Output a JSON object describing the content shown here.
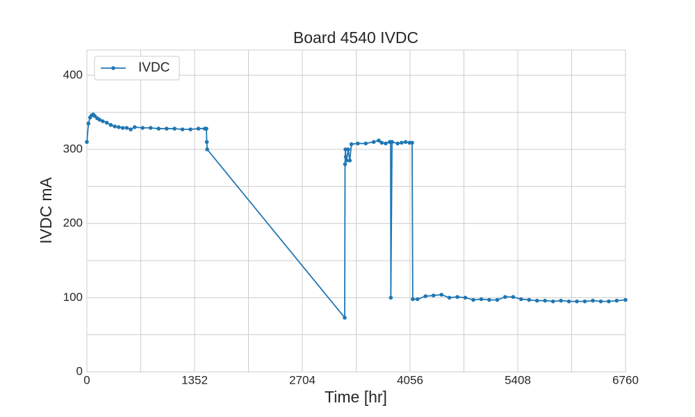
{
  "chart_data": {
    "type": "line",
    "title": "Board 4540 IVDC",
    "x_label": "Time [hr]",
    "y_label": "IVDC mA",
    "xlim": [
      0,
      6760
    ],
    "ylim": [
      0,
      434
    ],
    "xticks": [
      0,
      1352,
      2704,
      4056,
      5408,
      6760
    ],
    "yticks": [
      0,
      100,
      200,
      300,
      400
    ],
    "x_grid": [
      676,
      2028,
      3380,
      4732,
      6084
    ],
    "y_grid": [
      50,
      150,
      250,
      350
    ],
    "grid": true,
    "legend": "upper left",
    "series": [
      {
        "name": "IVDC",
        "color": "#1f77b4",
        "x": [
          0,
          20,
          40,
          60,
          80,
          100,
          130,
          160,
          200,
          250,
          300,
          350,
          400,
          450,
          500,
          550,
          600,
          700,
          800,
          900,
          1000,
          1100,
          1200,
          1300,
          1400,
          1480,
          1500,
          1505,
          1510,
          3236,
          3240,
          3245,
          3250,
          3260,
          3280,
          3300,
          3320,
          3400,
          3500,
          3600,
          3663,
          3700,
          3750,
          3800,
          3812,
          3815,
          3830,
          3900,
          3950,
          4000,
          4050,
          4082,
          4090,
          4150,
          4250,
          4350,
          4450,
          4550,
          4650,
          4750,
          4850,
          4950,
          5050,
          5150,
          5250,
          5350,
          5450,
          5550,
          5650,
          5750,
          5850,
          5950,
          6050,
          6150,
          6250,
          6350,
          6450,
          6550,
          6650,
          6760
        ],
        "values": [
          310,
          335,
          343,
          346,
          347,
          345,
          342,
          340,
          338,
          336,
          333,
          331,
          330,
          329,
          329,
          327,
          330,
          329,
          329,
          328,
          328,
          328,
          327,
          327,
          328,
          328,
          328,
          310,
          300,
          73,
          280,
          300,
          290,
          285,
          300,
          285,
          307,
          308,
          308,
          310,
          312,
          309,
          308,
          310,
          310,
          100,
          310,
          308,
          309,
          310,
          309,
          309,
          98,
          98,
          102,
          103,
          104,
          100,
          101,
          100,
          97,
          98,
          97,
          97,
          101,
          101,
          98,
          97,
          96,
          96,
          95,
          96,
          95,
          95,
          95,
          96,
          95,
          95,
          96,
          97
        ]
      }
    ]
  }
}
